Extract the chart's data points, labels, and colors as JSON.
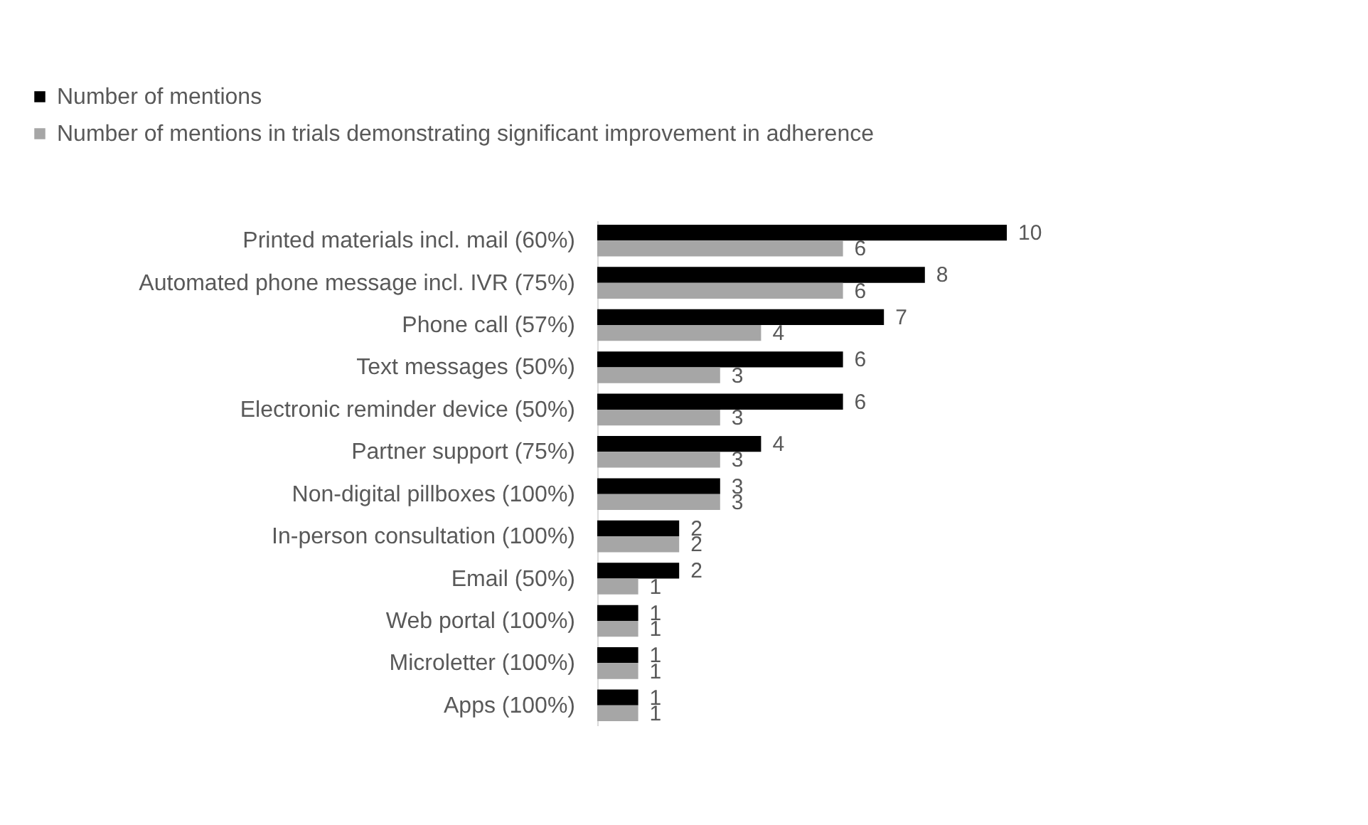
{
  "chart_data": {
    "type": "bar",
    "orientation": "horizontal",
    "categories": [
      "Printed materials incl. mail (60%)",
      "Automated phone message incl. IVR (75%)",
      "Phone call (57%)",
      "Text messages (50%)",
      "Electronic reminder device (50%)",
      "Partner support (75%)",
      "Non-digital pillboxes (100%)",
      "In-person consultation (100%)",
      "Email (50%)",
      "Web portal (100%)",
      "Microletter (100%)",
      "Apps (100%)"
    ],
    "series": [
      {
        "name": "Number of mentions",
        "color": "#000000",
        "values": [
          10,
          8,
          7,
          6,
          6,
          4,
          3,
          2,
          2,
          1,
          1,
          1
        ]
      },
      {
        "name": "Number of mentions in trials demonstrating significant improvement in adherence",
        "color": "#a6a6a6",
        "values": [
          6,
          6,
          4,
          3,
          3,
          3,
          3,
          2,
          1,
          1,
          1,
          1
        ]
      }
    ],
    "data_labels": true,
    "legend": "top",
    "grid": false
  }
}
